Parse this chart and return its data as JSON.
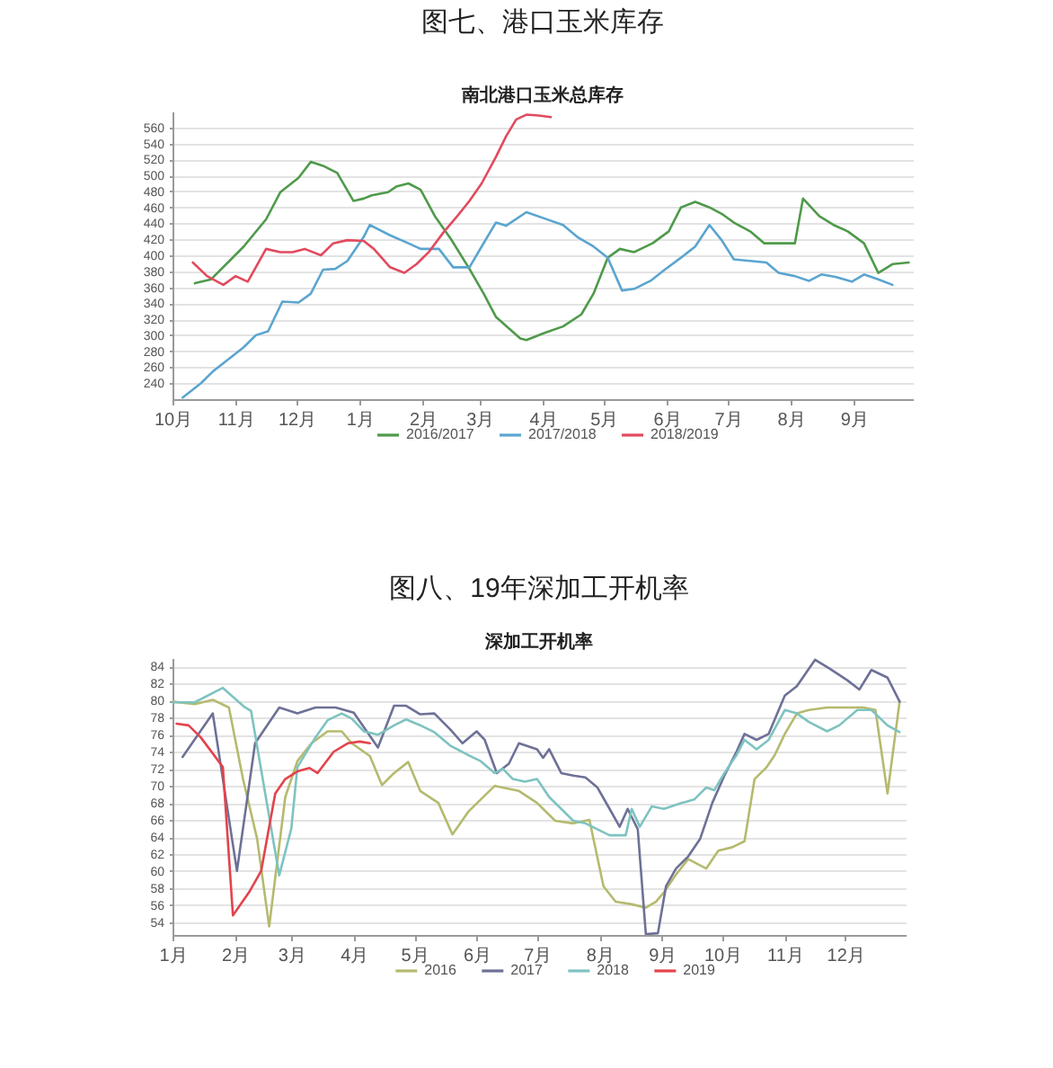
{
  "chart_data": [
    {
      "type": "line",
      "title": "图七、港口玉米库存",
      "subtitle": "南北港口玉米总库存",
      "xlim": [
        "2018-10-01",
        "2019-09-30"
      ],
      "xticks": [
        {
          "value": "2018-10-01",
          "label": "10月"
        },
        {
          "value": "2018-11-01",
          "label": "11月"
        },
        {
          "value": "2018-12-01",
          "label": "12月"
        },
        {
          "value": "2019-01-01",
          "label": "1月"
        },
        {
          "value": "2019-02-01",
          "label": "2月"
        },
        {
          "value": "2019-03-01",
          "label": "3月"
        },
        {
          "value": "2019-04-01",
          "label": "4月"
        },
        {
          "value": "2019-05-01",
          "label": "5月"
        },
        {
          "value": "2019-06-01",
          "label": "6月"
        },
        {
          "value": "2019-07-01",
          "label": "7月"
        },
        {
          "value": "2019-08-01",
          "label": "8月"
        },
        {
          "value": "2019-09-01",
          "label": "9月"
        }
      ],
      "ylim": [
        220,
        580
      ],
      "yticks": [
        240,
        260,
        280,
        300,
        320,
        340,
        360,
        380,
        400,
        420,
        440,
        460,
        480,
        500,
        520,
        540,
        560
      ],
      "grid": "y",
      "legend": "bottom",
      "series": [
        {
          "name": "2016/2017",
          "color": "#4f9a4a",
          "x": [
            "2018-10-12",
            "2018-10-20",
            "2018-10-29",
            "2018-11-05",
            "2018-11-16",
            "2018-11-23",
            "2018-12-02",
            "2018-12-08",
            "2018-12-14",
            "2018-12-21",
            "2018-12-29",
            "2019-01-03",
            "2019-01-07",
            "2019-01-15",
            "2019-01-19",
            "2019-01-25",
            "2019-01-31",
            "2019-02-07",
            "2019-02-15",
            "2019-02-24",
            "2019-03-03",
            "2019-03-09",
            "2019-03-21",
            "2019-03-24",
            "2019-04-02",
            "2019-04-11",
            "2019-04-20",
            "2019-04-26",
            "2019-05-03",
            "2019-05-09",
            "2019-05-16",
            "2019-05-25",
            "2019-06-02",
            "2019-06-08",
            "2019-06-15",
            "2019-06-22",
            "2019-06-28",
            "2019-07-04",
            "2019-07-12",
            "2019-07-19",
            "2019-08-03",
            "2019-08-07",
            "2019-08-15",
            "2019-08-22",
            "2019-08-29",
            "2019-09-06",
            "2019-09-13",
            "2019-09-20",
            "2019-09-28"
          ],
          "values": [
            365,
            370,
            393,
            411,
            445,
            479,
            497,
            517,
            512,
            503,
            468,
            471,
            475,
            479,
            486,
            490,
            482,
            449,
            420,
            383,
            352,
            323,
            296,
            294,
            303,
            311,
            326,
            352,
            397,
            408,
            404,
            415,
            430,
            460,
            467,
            460,
            452,
            441,
            430,
            415,
            415,
            471,
            449,
            438,
            430,
            415,
            378,
            389,
            391
          ]
        },
        {
          "name": "2017/2018",
          "color": "#5aa5cf",
          "x": [
            "2018-10-06",
            "2018-10-15",
            "2018-10-21",
            "2018-10-29",
            "2018-11-05",
            "2018-11-11",
            "2018-11-17",
            "2018-11-24",
            "2018-12-02",
            "2018-12-08",
            "2018-12-14",
            "2018-12-20",
            "2018-12-26",
            "2019-01-03",
            "2019-01-06",
            "2019-01-16",
            "2019-01-25",
            "2019-01-31",
            "2019-02-09",
            "2019-02-16",
            "2019-02-24",
            "2019-03-02",
            "2019-03-09",
            "2019-03-14",
            "2019-03-24",
            "2019-04-02",
            "2019-04-11",
            "2019-04-18",
            "2019-04-26",
            "2019-05-03",
            "2019-05-10",
            "2019-05-16",
            "2019-05-24",
            "2019-05-31",
            "2019-06-08",
            "2019-06-15",
            "2019-06-22",
            "2019-06-28",
            "2019-07-04",
            "2019-07-12",
            "2019-07-20",
            "2019-07-26",
            "2019-08-03",
            "2019-08-10",
            "2019-08-16",
            "2019-08-23",
            "2019-08-31",
            "2019-09-06",
            "2019-09-13",
            "2019-09-20"
          ],
          "values": [
            222,
            240,
            255,
            271,
            285,
            300,
            305,
            342,
            341,
            352,
            382,
            383,
            393,
            423,
            438,
            425,
            415,
            408,
            408,
            385,
            385,
            411,
            441,
            437,
            454,
            446,
            438,
            423,
            411,
            397,
            356,
            358,
            368,
            382,
            397,
            411,
            438,
            419,
            395,
            393,
            391,
            378,
            374,
            368,
            376,
            373,
            367,
            376,
            370,
            363
          ]
        },
        {
          "name": "2018/2019",
          "color": "#e24a5e",
          "x": [
            "2018-10-11",
            "2018-10-18",
            "2018-10-26",
            "2018-11-01",
            "2018-11-07",
            "2018-11-16",
            "2018-11-23",
            "2018-11-29",
            "2018-12-05",
            "2018-12-13",
            "2018-12-19",
            "2018-12-26",
            "2019-01-03",
            "2019-01-08",
            "2019-01-16",
            "2019-01-23",
            "2019-01-29",
            "2019-02-04",
            "2019-02-11",
            "2019-02-18",
            "2019-02-24",
            "2019-03-02",
            "2019-03-09",
            "2019-03-14",
            "2019-03-19",
            "2019-03-24",
            "2019-03-30",
            "2019-04-05"
          ],
          "values": [
            391,
            374,
            363,
            374,
            367,
            408,
            404,
            404,
            408,
            400,
            415,
            419,
            418,
            408,
            385,
            378,
            389,
            404,
            428,
            449,
            468,
            490,
            523,
            549,
            570,
            576,
            575,
            573
          ]
        }
      ]
    },
    {
      "type": "line",
      "title": "图八、19年深加工开机率",
      "subtitle": "深加工开机率",
      "xlim": [
        "--01-01",
        "--12-31"
      ],
      "xticks": [
        {
          "value": "--01-01",
          "label": "1月"
        },
        {
          "value": "--02-01",
          "label": "2月"
        },
        {
          "value": "--03-01",
          "label": "3月"
        },
        {
          "value": "--04-01",
          "label": "4月"
        },
        {
          "value": "--05-01",
          "label": "5月"
        },
        {
          "value": "--06-01",
          "label": "6月"
        },
        {
          "value": "--07-01",
          "label": "7月"
        },
        {
          "value": "--08-01",
          "label": "8月"
        },
        {
          "value": "--09-01",
          "label": "9月"
        },
        {
          "value": "--10-01",
          "label": "10月"
        },
        {
          "value": "--11-01",
          "label": "11月"
        },
        {
          "value": "--12-01",
          "label": "12月"
        }
      ],
      "ylim": [
        52.5,
        85
      ],
      "yticks": [
        54,
        56,
        58,
        60,
        62,
        64,
        66,
        68,
        70,
        72,
        74,
        76,
        78,
        80,
        82,
        84
      ],
      "grid": "y",
      "legend": "bottom",
      "series": [
        {
          "name": "2016",
          "color": "#b5ba6e",
          "x": [
            "--01-01",
            "--01-12",
            "--01-21",
            "--01-29",
            "--02-05",
            "--02-12",
            "--02-18",
            "--02-26",
            "--03-04",
            "--03-11",
            "--03-19",
            "--03-26",
            "--03-31",
            "--04-09",
            "--04-15",
            "--04-21",
            "--04-28",
            "--05-04",
            "--05-13",
            "--05-20",
            "--05-28",
            "--06-03",
            "--06-10",
            "--06-22",
            "--07-01",
            "--07-10",
            "--07-19",
            "--07-27",
            "--08-03",
            "--08-09",
            "--08-17",
            "--08-24",
            "--08-29",
            "--09-02",
            "--09-08",
            "--09-14",
            "--09-23",
            "--09-29",
            "--10-06",
            "--10-12",
            "--10-17",
            "--10-23",
            "--10-27",
            "--11-01",
            "--11-07",
            "--11-13",
            "--11-22",
            "--12-01",
            "--12-10",
            "--12-16",
            "--12-22",
            "--12-28"
          ],
          "values": [
            79.9,
            79.6,
            80.1,
            79.2,
            70.8,
            63.8,
            53.5,
            68.7,
            72.9,
            75,
            76.4,
            76.4,
            75,
            73.5,
            70.1,
            71.5,
            72.8,
            69.4,
            68,
            64.3,
            67,
            68.4,
            70,
            69.4,
            68,
            65.9,
            65.6,
            66,
            58.2,
            56.4,
            56.1,
            55.7,
            56.4,
            57.5,
            59.6,
            61.4,
            60.3,
            62.4,
            62.8,
            63.5,
            70.8,
            72.2,
            73.6,
            76.1,
            78.5,
            78.9,
            79.2,
            79.2,
            79.2,
            78.9,
            69.1,
            79.9
          ]
        },
        {
          "name": "2017",
          "color": "#6d7196",
          "x": [
            "--01-06",
            "--01-21",
            "--02-02",
            "--02-11",
            "--02-23",
            "--03-04",
            "--03-13",
            "--03-23",
            "--04-01",
            "--04-13",
            "--04-21",
            "--04-27",
            "--05-04",
            "--05-11",
            "--05-19",
            "--05-25",
            "--06-01",
            "--06-05",
            "--06-11",
            "--06-17",
            "--06-22",
            "--07-01",
            "--07-04",
            "--07-07",
            "--07-13",
            "--07-19",
            "--07-25",
            "--07-31",
            "--08-06",
            "--08-11",
            "--08-15",
            "--08-20",
            "--08-24",
            "--08-30",
            "--09-03",
            "--09-08",
            "--09-14",
            "--09-20",
            "--09-26",
            "--10-02",
            "--10-08",
            "--10-12",
            "--10-18",
            "--10-24",
            "--11-01",
            "--11-07",
            "--11-16",
            "--11-23",
            "--12-02",
            "--12-08",
            "--12-14",
            "--12-22",
            "--12-28"
          ],
          "values": [
            73.4,
            78.5,
            60,
            75,
            79.2,
            78.5,
            79.2,
            79.2,
            78.6,
            74.5,
            79.4,
            79.4,
            78.4,
            78.5,
            76.6,
            75,
            76.4,
            75.4,
            71.5,
            72.6,
            75,
            74.3,
            73.3,
            74.3,
            71.5,
            71.2,
            71,
            69.8,
            67.3,
            65.2,
            67.3,
            64.9,
            52.6,
            52.7,
            58.2,
            60.3,
            61.7,
            63.8,
            68,
            71.2,
            74,
            76.1,
            75.4,
            76.1,
            80.6,
            81.7,
            84.8,
            83.8,
            82.4,
            81.3,
            83.6,
            82.7,
            79.9
          ]
        },
        {
          "name": "2018",
          "color": "#7ec3c0",
          "x": [
            "--01-01",
            "--01-12",
            "--01-26",
            "--02-06",
            "--02-09",
            "--02-23",
            "--03-01",
            "--03-04",
            "--03-13",
            "--03-19",
            "--03-26",
            "--03-31",
            "--04-06",
            "--04-13",
            "--04-21",
            "--04-27",
            "--05-05",
            "--05-11",
            "--05-19",
            "--05-28",
            "--06-03",
            "--06-10",
            "--06-14",
            "--06-19",
            "--06-25",
            "--07-01",
            "--07-07",
            "--07-13",
            "--07-19",
            "--07-25",
            "--08-06",
            "--08-14",
            "--08-17",
            "--08-21",
            "--08-27",
            "--09-02",
            "--09-11",
            "--09-17",
            "--09-23",
            "--09-27",
            "--10-02",
            "--10-08",
            "--10-12",
            "--10-18",
            "--10-24",
            "--11-01",
            "--11-07",
            "--11-13",
            "--11-22",
            "--11-28",
            "--12-07",
            "--12-14",
            "--12-22",
            "--12-28"
          ],
          "values": [
            79.8,
            79.8,
            81.5,
            79.2,
            78.8,
            59.5,
            65,
            72.2,
            75.7,
            77.7,
            78.5,
            77.9,
            76.4,
            76,
            77.1,
            77.8,
            77,
            76.3,
            74.7,
            73.6,
            72.9,
            71.5,
            72,
            70.8,
            70.5,
            70.8,
            68.7,
            67.3,
            65.9,
            65.6,
            64.2,
            64.2,
            67.3,
            65.2,
            67.6,
            67.3,
            68,
            68.4,
            69.8,
            69.5,
            71.5,
            73.6,
            75.4,
            74.3,
            75.4,
            78.9,
            78.5,
            77.5,
            76.4,
            77.1,
            78.9,
            78.9,
            77.1,
            76.3
          ]
        },
        {
          "name": "2019",
          "color": "#e3434c",
          "x": [
            "--01-03",
            "--01-09",
            "--01-15",
            "--01-21",
            "--01-26",
            "--01-31",
            "--02-08",
            "--02-14",
            "--02-21",
            "--02-26",
            "--03-04",
            "--03-10",
            "--03-14",
            "--03-22",
            "--03-29",
            "--04-04",
            "--04-09"
          ],
          "values": [
            77.3,
            77.1,
            75.7,
            73.8,
            72.2,
            54.8,
            57.5,
            60,
            69.1,
            70.8,
            71.7,
            72.1,
            71.5,
            74,
            75,
            75.2,
            75
          ]
        }
      ]
    }
  ]
}
